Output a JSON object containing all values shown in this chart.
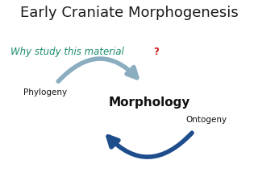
{
  "title": "Early Craniate Morphogenesis",
  "title_fontsize": 13,
  "title_color": "#1a1a1a",
  "subtitle_main": "Why study this material",
  "subtitle_q": "?",
  "subtitle_color": "#1a8a6a",
  "subtitle_q_color": "#cc2222",
  "subtitle_fontsize": 8.5,
  "label_phylogeny": "Phylogeny",
  "label_morphology": "Morphology",
  "label_ontogeny": "Ontogeny",
  "morphology_fontsize": 11,
  "other_fontsize": 7.5,
  "arrow_top_color": "#8BADC0",
  "arrow_bottom_color": "#1E4D8C",
  "bg_color": "#FFFFFF",
  "figsize": [
    3.2,
    2.4
  ],
  "dpi": 100
}
